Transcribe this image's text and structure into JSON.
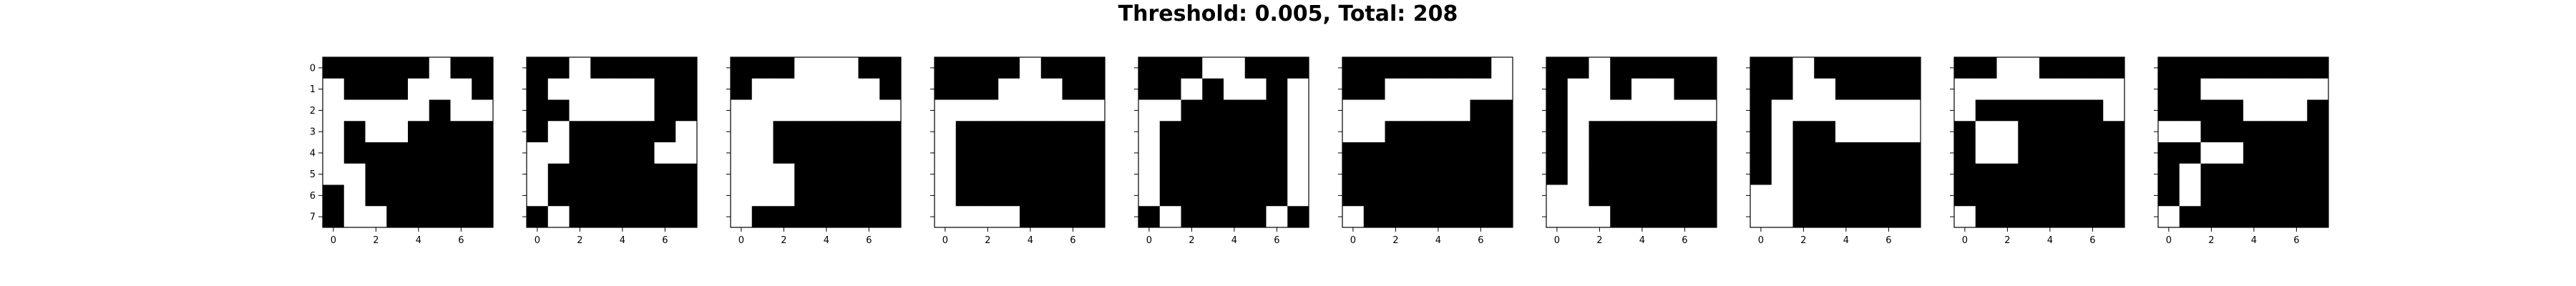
{
  "title": "Threshold: 0.005, Total: 208",
  "colors": {
    "on": "#000000",
    "off": "#ffffff",
    "axis": "#000000"
  },
  "chart_data": {
    "type": "heatmap",
    "rows": 8,
    "cols": 8,
    "colormap": "binary (1 = black, 0 = white)",
    "xticks": [
      0,
      2,
      4,
      6
    ],
    "yticks": [
      0,
      1,
      2,
      3,
      4,
      5,
      6,
      7
    ],
    "grid": false,
    "panels": [
      {
        "values": [
          [
            1,
            1,
            1,
            1,
            1,
            0,
            1,
            1
          ],
          [
            0,
            1,
            1,
            1,
            0,
            0,
            0,
            1
          ],
          [
            0,
            0,
            0,
            0,
            0,
            1,
            0,
            0
          ],
          [
            0,
            1,
            0,
            0,
            1,
            1,
            1,
            1
          ],
          [
            0,
            1,
            1,
            1,
            1,
            1,
            1,
            1
          ],
          [
            0,
            0,
            1,
            1,
            1,
            1,
            1,
            1
          ],
          [
            1,
            0,
            1,
            1,
            1,
            1,
            1,
            1
          ],
          [
            1,
            0,
            0,
            1,
            1,
            1,
            1,
            1
          ]
        ]
      },
      {
        "values": [
          [
            1,
            1,
            0,
            1,
            1,
            1,
            1,
            1
          ],
          [
            1,
            0,
            0,
            0,
            0,
            0,
            1,
            1
          ],
          [
            1,
            1,
            0,
            0,
            0,
            0,
            1,
            1
          ],
          [
            1,
            0,
            1,
            1,
            1,
            1,
            1,
            0
          ],
          [
            0,
            0,
            1,
            1,
            1,
            1,
            0,
            0
          ],
          [
            0,
            1,
            1,
            1,
            1,
            1,
            1,
            1
          ],
          [
            0,
            1,
            1,
            1,
            1,
            1,
            1,
            1
          ],
          [
            1,
            0,
            1,
            1,
            1,
            1,
            1,
            1
          ]
        ]
      },
      {
        "values": [
          [
            1,
            1,
            1,
            0,
            0,
            0,
            1,
            1
          ],
          [
            1,
            0,
            0,
            0,
            0,
            0,
            0,
            1
          ],
          [
            0,
            0,
            0,
            0,
            0,
            0,
            0,
            0
          ],
          [
            0,
            0,
            1,
            1,
            1,
            1,
            1,
            1
          ],
          [
            0,
            0,
            1,
            1,
            1,
            1,
            1,
            1
          ],
          [
            0,
            0,
            0,
            1,
            1,
            1,
            1,
            1
          ],
          [
            0,
            0,
            0,
            1,
            1,
            1,
            1,
            1
          ],
          [
            0,
            1,
            1,
            1,
            1,
            1,
            1,
            1
          ]
        ]
      },
      {
        "values": [
          [
            1,
            1,
            1,
            1,
            0,
            1,
            1,
            1
          ],
          [
            1,
            1,
            1,
            0,
            0,
            0,
            1,
            1
          ],
          [
            0,
            0,
            0,
            0,
            0,
            0,
            0,
            0
          ],
          [
            0,
            1,
            1,
            1,
            1,
            1,
            1,
            1
          ],
          [
            0,
            1,
            1,
            1,
            1,
            1,
            1,
            1
          ],
          [
            0,
            1,
            1,
            1,
            1,
            1,
            1,
            1
          ],
          [
            0,
            1,
            1,
            1,
            1,
            1,
            1,
            1
          ],
          [
            0,
            0,
            0,
            0,
            1,
            1,
            1,
            1
          ]
        ]
      },
      {
        "values": [
          [
            1,
            1,
            1,
            0,
            0,
            1,
            1,
            1
          ],
          [
            1,
            1,
            0,
            1,
            0,
            0,
            1,
            0
          ],
          [
            0,
            0,
            1,
            1,
            1,
            1,
            1,
            0
          ],
          [
            0,
            1,
            1,
            1,
            1,
            1,
            1,
            0
          ],
          [
            0,
            1,
            1,
            1,
            1,
            1,
            1,
            0
          ],
          [
            0,
            1,
            1,
            1,
            1,
            1,
            1,
            0
          ],
          [
            0,
            1,
            1,
            1,
            1,
            1,
            1,
            0
          ],
          [
            1,
            0,
            1,
            1,
            1,
            1,
            0,
            1
          ]
        ]
      },
      {
        "values": [
          [
            1,
            1,
            1,
            1,
            1,
            1,
            1,
            0
          ],
          [
            1,
            1,
            0,
            0,
            0,
            0,
            0,
            0
          ],
          [
            0,
            0,
            0,
            0,
            0,
            0,
            1,
            1
          ],
          [
            0,
            0,
            1,
            1,
            1,
            1,
            1,
            1
          ],
          [
            1,
            1,
            1,
            1,
            1,
            1,
            1,
            1
          ],
          [
            1,
            1,
            1,
            1,
            1,
            1,
            1,
            1
          ],
          [
            1,
            1,
            1,
            1,
            1,
            1,
            1,
            1
          ],
          [
            0,
            1,
            1,
            1,
            1,
            1,
            1,
            1
          ]
        ]
      },
      {
        "values": [
          [
            1,
            1,
            0,
            1,
            1,
            1,
            1,
            1
          ],
          [
            1,
            0,
            0,
            1,
            0,
            0,
            1,
            1
          ],
          [
            1,
            0,
            0,
            0,
            0,
            0,
            0,
            0
          ],
          [
            1,
            0,
            1,
            1,
            1,
            1,
            1,
            1
          ],
          [
            1,
            0,
            1,
            1,
            1,
            1,
            1,
            1
          ],
          [
            1,
            0,
            1,
            1,
            1,
            1,
            1,
            1
          ],
          [
            0,
            0,
            1,
            1,
            1,
            1,
            1,
            1
          ],
          [
            0,
            0,
            0,
            1,
            1,
            1,
            1,
            1
          ]
        ]
      },
      {
        "values": [
          [
            1,
            1,
            0,
            1,
            1,
            1,
            1,
            1
          ],
          [
            1,
            1,
            0,
            0,
            1,
            1,
            1,
            1
          ],
          [
            1,
            0,
            0,
            0,
            0,
            0,
            0,
            0
          ],
          [
            1,
            0,
            1,
            1,
            0,
            0,
            0,
            0
          ],
          [
            1,
            0,
            1,
            1,
            1,
            1,
            1,
            1
          ],
          [
            1,
            0,
            1,
            1,
            1,
            1,
            1,
            1
          ],
          [
            0,
            0,
            1,
            1,
            1,
            1,
            1,
            1
          ],
          [
            0,
            0,
            1,
            1,
            1,
            1,
            1,
            1
          ]
        ]
      },
      {
        "values": [
          [
            1,
            1,
            0,
            0,
            1,
            1,
            1,
            1
          ],
          [
            0,
            0,
            0,
            0,
            0,
            0,
            0,
            0
          ],
          [
            0,
            1,
            1,
            1,
            1,
            1,
            1,
            0
          ],
          [
            1,
            0,
            0,
            1,
            1,
            1,
            1,
            1
          ],
          [
            1,
            0,
            0,
            1,
            1,
            1,
            1,
            1
          ],
          [
            1,
            1,
            1,
            1,
            1,
            1,
            1,
            1
          ],
          [
            1,
            1,
            1,
            1,
            1,
            1,
            1,
            1
          ],
          [
            0,
            1,
            1,
            1,
            1,
            1,
            1,
            1
          ]
        ]
      },
      {
        "values": [
          [
            1,
            1,
            1,
            1,
            1,
            1,
            1,
            1
          ],
          [
            1,
            1,
            0,
            0,
            0,
            0,
            0,
            0
          ],
          [
            1,
            1,
            1,
            1,
            0,
            0,
            0,
            1
          ],
          [
            0,
            0,
            1,
            1,
            1,
            1,
            1,
            1
          ],
          [
            1,
            1,
            0,
            0,
            1,
            1,
            1,
            1
          ],
          [
            1,
            0,
            1,
            1,
            1,
            1,
            1,
            1
          ],
          [
            1,
            0,
            1,
            1,
            1,
            1,
            1,
            1
          ],
          [
            0,
            1,
            1,
            1,
            1,
            1,
            1,
            1
          ]
        ]
      }
    ]
  }
}
